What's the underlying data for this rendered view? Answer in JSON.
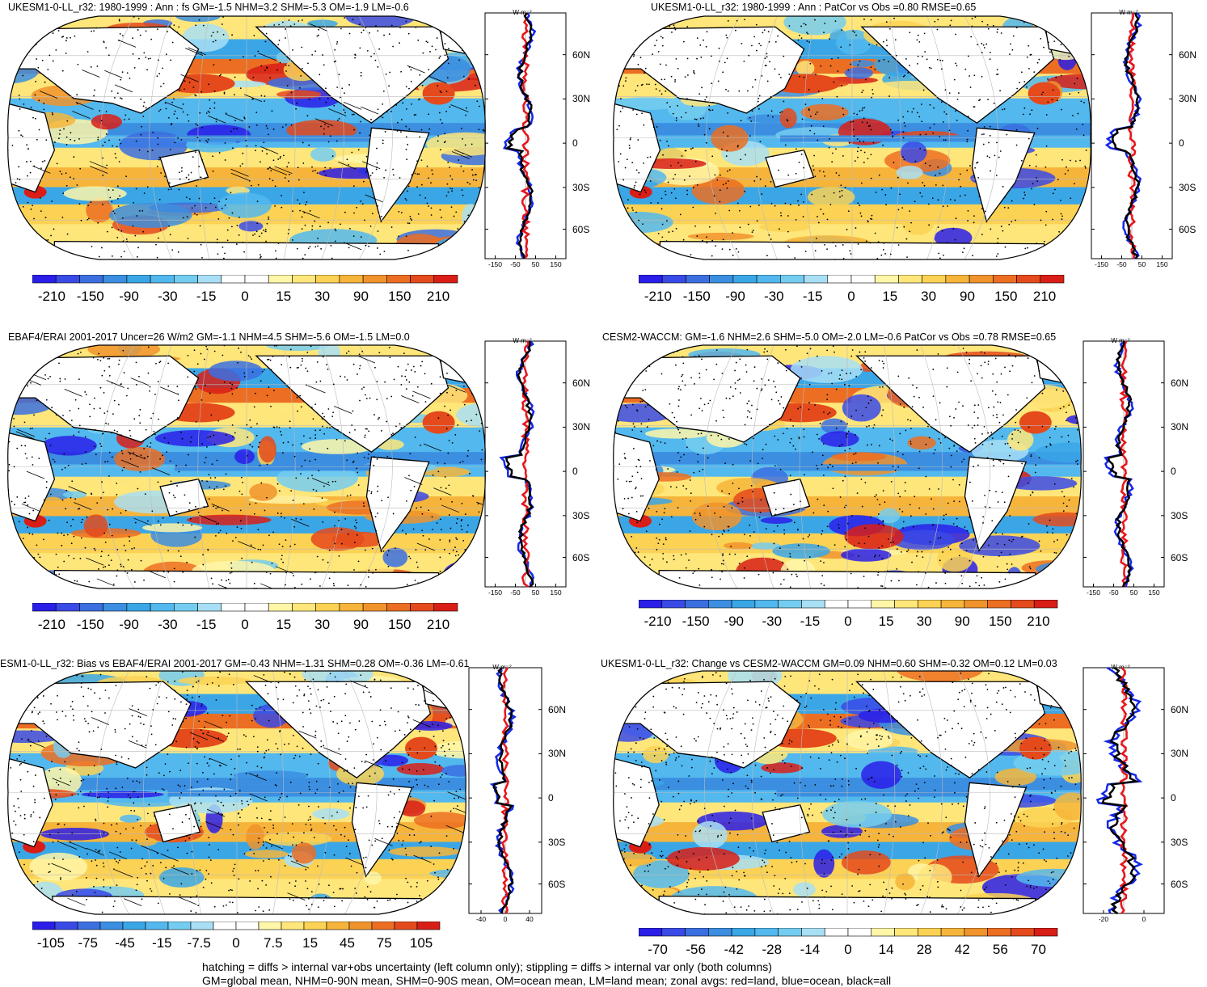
{
  "unit_label": "W m⁻²",
  "lat_labels": [
    "60N",
    "30N",
    "0",
    "30S",
    "60S"
  ],
  "colors": {
    "palette_cool": [
      "#2a1ee8",
      "#3a4ae6",
      "#3b6fe0",
      "#3b8ee0",
      "#3aa6e6",
      "#52b8ee",
      "#74cdf0",
      "#a8dff4"
    ],
    "palette_warm": [
      "#fff6a8",
      "#ffe67a",
      "#fcd254",
      "#f6b53a",
      "#f0932c",
      "#ec6e22",
      "#e44a1c",
      "#d81e16"
    ],
    "land": "#ffffff",
    "zonal_land": "#e8141a",
    "zonal_ocean": "#1428e8",
    "zonal_all": "#000000"
  },
  "panels": [
    {
      "id": "top-left",
      "title": "UKESM1-0-LL_r32: 1980-1999 : Ann : fs GM=-1.5 NHM=3.2 SHM=-5.3 OM=-1.9 LM=-0.6",
      "colorbar_labels": [
        "-210",
        "-150",
        "-90",
        "-30",
        "-15",
        "0",
        "15",
        "30",
        "90",
        "150",
        "210"
      ],
      "zonal_ticks": [
        "-150",
        "-50",
        "50",
        "150"
      ]
    },
    {
      "id": "top-right",
      "title": "UKESM1-0-LL_r32: 1980-1999 : Ann : PatCor vs Obs =0.80 RMSE=0.65",
      "colorbar_labels": [
        "-210",
        "-150",
        "-90",
        "-30",
        "-15",
        "0",
        "15",
        "30",
        "90",
        "150",
        "210"
      ],
      "zonal_ticks": [
        "-150",
        "-50",
        "50",
        "150"
      ]
    },
    {
      "id": "middle-left",
      "title": "EBAF4/ERAI 2001-2017 Uncer=26 W/m2 GM=-1.1 NHM=4.5 SHM=-5.6 OM=-1.5 LM=0.0",
      "colorbar_labels": [
        "-210",
        "-150",
        "-90",
        "-30",
        "-15",
        "0",
        "15",
        "30",
        "90",
        "150",
        "210"
      ],
      "zonal_ticks": [
        "-150",
        "-50",
        "50",
        "150"
      ]
    },
    {
      "id": "middle-right",
      "title": "CESM2-WACCM: GM=-1.6 NHM=2.6 SHM=-5.0 OM=-2.0 LM=-0.6 PatCor vs Obs =0.78 RMSE=0.65",
      "colorbar_labels": [
        "-210",
        "-150",
        "-90",
        "-30",
        "-15",
        "0",
        "15",
        "30",
        "90",
        "150",
        "210"
      ],
      "zonal_ticks": [
        "-150",
        "-50",
        "50",
        "150"
      ]
    },
    {
      "id": "bottom-left",
      "title": "ESM1-0-LL_r32: Bias vs EBAF4/ERAI 2001-2017 GM=-0.43 NHM=-1.31 SHM=0.28 OM=-0.36 LM=-0.61",
      "colorbar_labels": [
        "-105",
        "-75",
        "-45",
        "-15",
        "-7.5",
        "0",
        "7.5",
        "15",
        "45",
        "75",
        "105"
      ],
      "zonal_ticks": [
        "-40",
        "0",
        "40"
      ]
    },
    {
      "id": "bottom-right",
      "title": "UKESM1-0-LL_r32: Change vs CESM2-WACCM GM=0.09 NHM=0.60 SHM=-0.32 OM=0.12 LM=0.03",
      "colorbar_labels": [
        "-70",
        "-56",
        "-42",
        "-28",
        "-14",
        "0",
        "14",
        "28",
        "42",
        "56",
        "70"
      ],
      "zonal_ticks": [
        "-20",
        "0"
      ]
    }
  ],
  "footer": {
    "line1": "hatching = diffs > internal var+obs uncertainty (left column only); stippling = diffs > internal var only (both columns)",
    "line2": "GM=global mean, NHM=0-90N mean, SHM=0-90S mean, OM=ocean mean, LM=land mean; zonal avgs: red=land, blue=ocean, black=all"
  }
}
